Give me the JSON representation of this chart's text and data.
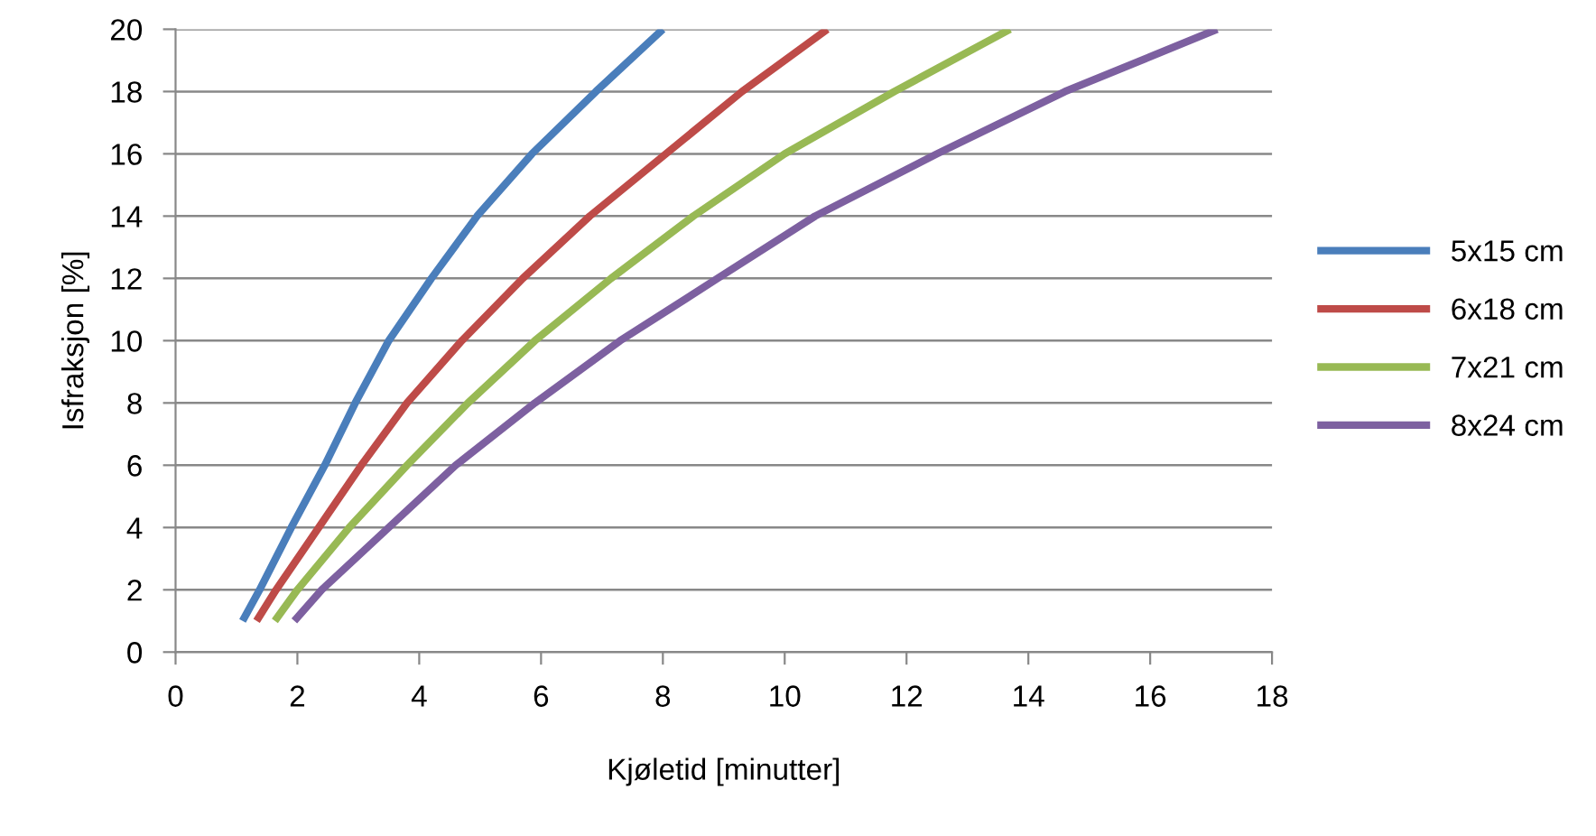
{
  "chart_data": {
    "type": "line",
    "xlabel": "Kjøletid [minutter]",
    "ylabel": "Isfraksjon [%]",
    "xlim": [
      0,
      18
    ],
    "xticks": [
      0,
      2,
      4,
      6,
      8,
      10,
      12,
      14,
      16,
      18
    ],
    "ylim": [
      0,
      20
    ],
    "yticks": [
      0,
      2,
      4,
      6,
      8,
      10,
      12,
      14,
      16,
      18,
      20
    ],
    "grid": "y",
    "legend": "right",
    "marker": "none",
    "line_style": "solid",
    "series": [
      {
        "name": "5x15 cm",
        "color": "#4a7ebb",
        "x": [
          1.1,
          1.38,
          1.9,
          2.45,
          2.95,
          3.5,
          4.2,
          4.95,
          5.85,
          6.9,
          8.0
        ],
        "values": [
          1,
          2,
          4,
          6,
          8,
          10,
          12,
          14,
          16,
          18,
          20
        ]
      },
      {
        "name": "6x18 cm",
        "color": "#be4b48",
        "x": [
          1.33,
          1.65,
          2.35,
          3.05,
          3.8,
          4.7,
          5.7,
          6.8,
          8.05,
          9.3,
          10.7
        ],
        "values": [
          1,
          2,
          4,
          6,
          8,
          10,
          12,
          14,
          16,
          18,
          20
        ]
      },
      {
        "name": "7x21 cm",
        "color": "#98b954",
        "x": [
          1.63,
          2.0,
          2.85,
          3.8,
          4.8,
          5.9,
          7.15,
          8.5,
          10.0,
          11.8,
          13.7
        ],
        "values": [
          1,
          2,
          4,
          6,
          8,
          10,
          12,
          14,
          16,
          18,
          20
        ]
      },
      {
        "name": "8x24 cm",
        "color": "#7d60a0",
        "x": [
          1.95,
          2.4,
          3.5,
          4.6,
          5.9,
          7.3,
          8.9,
          10.5,
          12.5,
          14.6,
          17.1
        ],
        "values": [
          1,
          2,
          4,
          6,
          8,
          10,
          12,
          14,
          16,
          18,
          20
        ]
      }
    ]
  }
}
